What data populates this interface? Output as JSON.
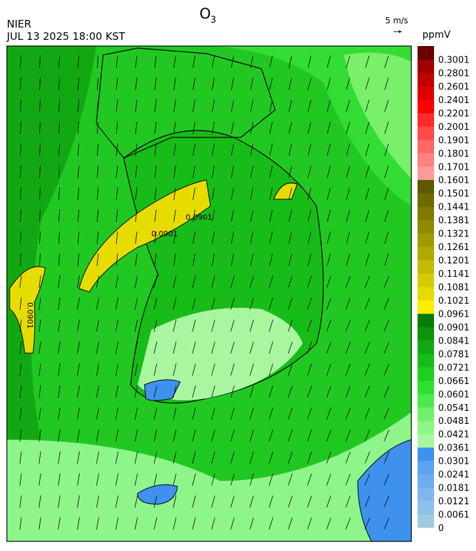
{
  "header": {
    "title": "O",
    "title_sub": "3",
    "agency": "NIER",
    "datetime": "JUL 13 2025 18:00 KST",
    "wind_scale": "5 m/s"
  },
  "colorbar": {
    "unit": "ppmV",
    "labels": [
      0,
      0.0061,
      0.0121,
      0.0181,
      0.0241,
      0.0301,
      0.0361,
      0.0421,
      0.0481,
      0.0541,
      0.0601,
      0.0661,
      0.0721,
      0.0781,
      0.0841,
      0.0901,
      0.0961,
      0.1021,
      0.1081,
      0.1141,
      0.1201,
      0.1261,
      0.1321,
      0.1381,
      0.1441,
      0.1501,
      0.1601,
      0.1701,
      0.1801,
      0.1901,
      0.2001,
      0.2201,
      0.2401,
      0.2601,
      0.2801,
      0.3001
    ],
    "colors": [
      "#9ecae1",
      "#8ec0ec",
      "#7eb6ee",
      "#6eacf0",
      "#5ea2f0",
      "#3f91ee",
      "#a8f7a0",
      "#8ef58a",
      "#6ff06a",
      "#4de84a",
      "#2ee02c",
      "#1ed01e",
      "#18bc18",
      "#12a812",
      "#0c940c",
      "#087c08",
      "#ffee00",
      "#e6dc00",
      "#d4cc00",
      "#c2bc00",
      "#b0aa00",
      "#a09a00",
      "#8e8a00",
      "#7e7a00",
      "#6e6a00",
      "#5e5a00",
      "#ff9a9a",
      "#ff8080",
      "#ff6666",
      "#ff4a4a",
      "#ff2a2a",
      "#ff0000",
      "#e00000",
      "#c00000",
      "#a00000",
      "#6a0000"
    ]
  },
  "map": {
    "contour_labels": [
      "0.0901",
      "0.0901",
      "0.0901"
    ]
  }
}
